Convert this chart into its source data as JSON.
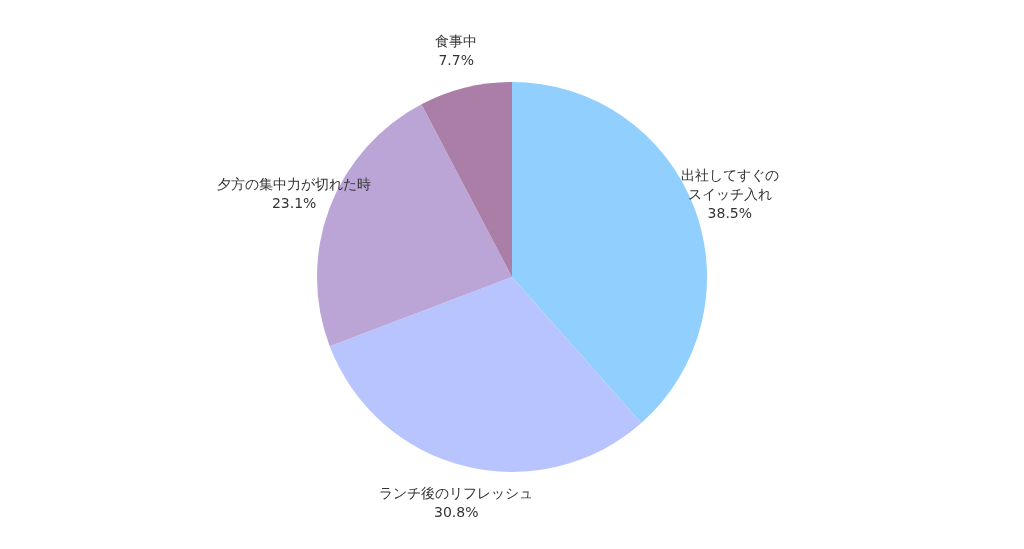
{
  "chart_data": {
    "type": "pie",
    "categories": [
      "出社してすぐのスイッチ入れ",
      "ランチ後のリフレッシュ",
      "夕方の集中力が切れた時",
      "食事中"
    ],
    "values": [
      38.5,
      30.8,
      23.1,
      7.7
    ],
    "value_labels": [
      "38.5%",
      "30.8%",
      "23.1%",
      "7.7%"
    ],
    "colors": [
      "#90cffe",
      "#b8c4fe",
      "#bba5d6",
      "#ab7ea8"
    ]
  }
}
